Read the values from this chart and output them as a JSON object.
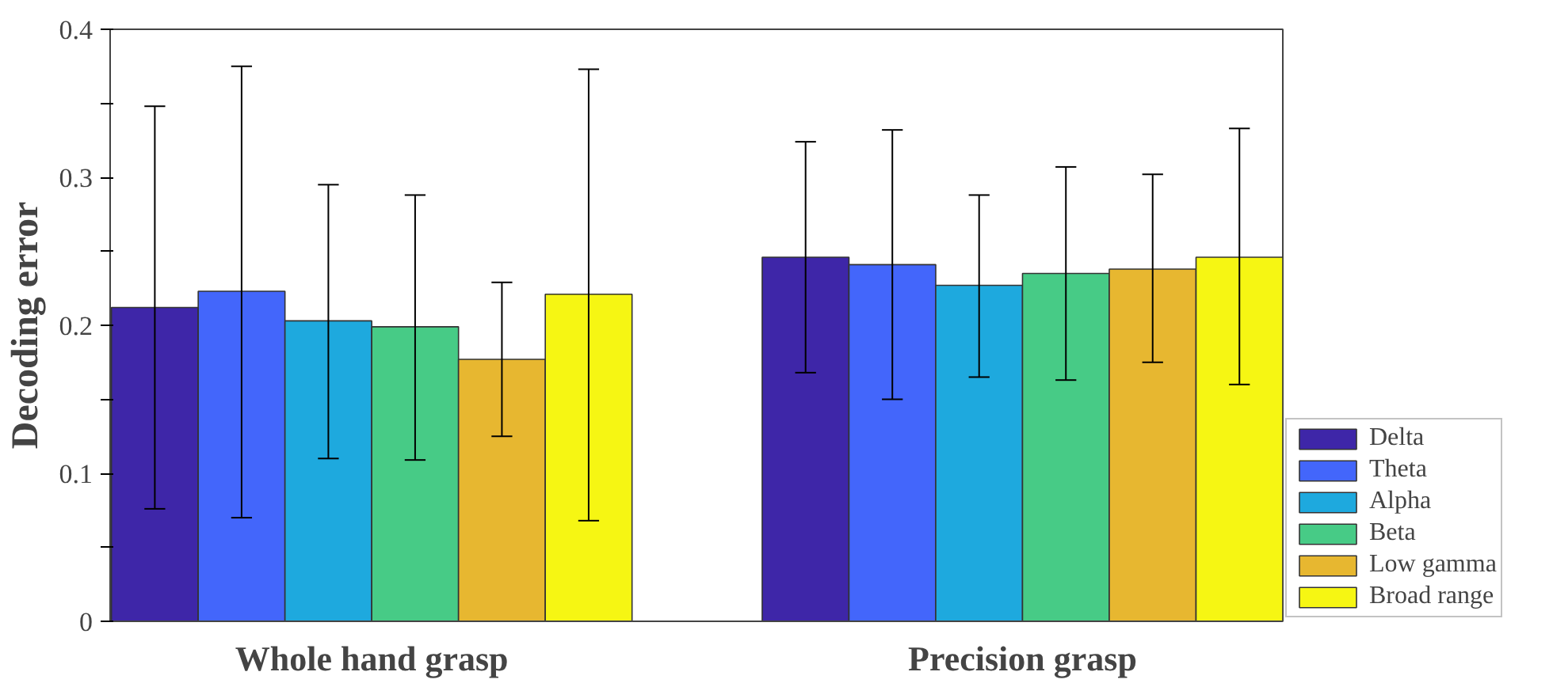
{
  "chart_data": {
    "type": "bar",
    "ylabel": "Decoding error",
    "categories": [
      "Whole hand grasp",
      "Precision grasp"
    ],
    "ylim": [
      0,
      0.4
    ],
    "yticks": [
      0,
      {
        "value": 0.05,
        "label": null
      },
      0.1,
      {
        "value": 0.15,
        "label": null
      },
      0.2,
      {
        "value": 0.25,
        "label": null
      },
      0.3,
      {
        "value": 0.35,
        "label": null
      },
      0.4
    ],
    "grid": false,
    "legend": "bottom right",
    "series": [
      {
        "name": "Delta",
        "color": "#3e26a8",
        "values": [
          0.212,
          0.246
        ],
        "errors": [
          [
            0.076,
            0.348
          ],
          [
            0.168,
            0.324
          ]
        ]
      },
      {
        "name": "Theta",
        "color": "#4366fb",
        "values": [
          0.223,
          0.241
        ],
        "errors": [
          [
            0.07,
            0.375
          ],
          [
            0.15,
            0.332
          ]
        ]
      },
      {
        "name": "Alpha",
        "color": "#1ea9de",
        "values": [
          0.203,
          0.227
        ],
        "errors": [
          [
            0.11,
            0.295
          ],
          [
            0.165,
            0.288
          ]
        ]
      },
      {
        "name": "Beta",
        "color": "#47cb86",
        "values": [
          0.199,
          0.235
        ],
        "errors": [
          [
            0.109,
            0.288
          ],
          [
            0.163,
            0.307
          ]
        ]
      },
      {
        "name": "Low gamma",
        "color": "#e7b730",
        "values": [
          0.177,
          0.238
        ],
        "errors": [
          [
            0.125,
            0.229
          ],
          [
            0.175,
            0.302
          ]
        ]
      },
      {
        "name": "Broad range",
        "color": "#f6f613",
        "values": [
          0.221,
          0.246
        ],
        "errors": [
          [
            0.068,
            0.373
          ],
          [
            0.16,
            0.333
          ]
        ]
      }
    ]
  }
}
